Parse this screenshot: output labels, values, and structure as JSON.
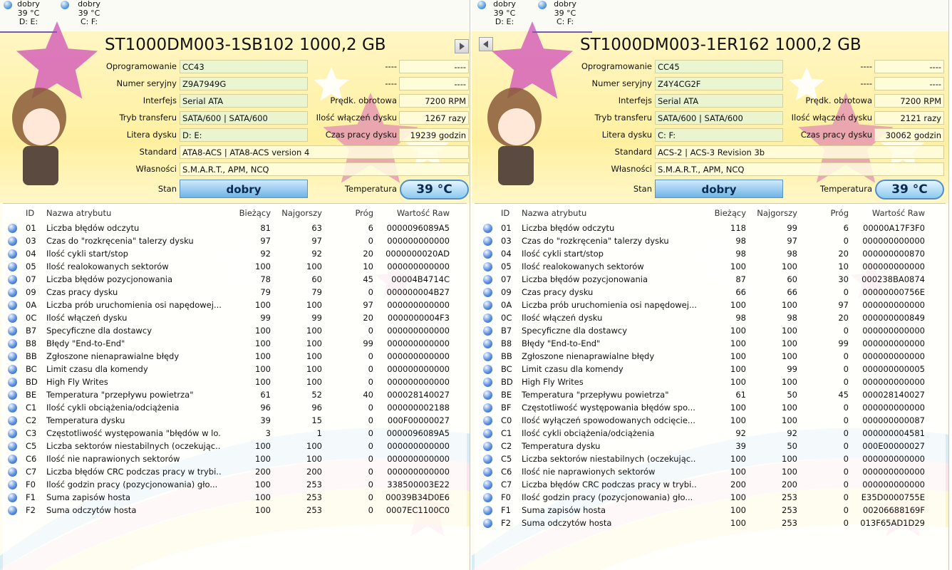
{
  "panels": [
    {
      "tabs": [
        {
          "status": "dobry",
          "temperature": "39 °C",
          "drives": "D: E:"
        },
        {
          "status": "dobry",
          "temperature": "39 °C",
          "drives": "C: F:"
        }
      ],
      "title": "ST1000DM003-1SB102 1000,2 GB",
      "fields": [
        {
          "label": "Oprogramowanie",
          "value": "CC43"
        },
        {
          "label": "Numer seryjny",
          "value": "Z9A7949G"
        },
        {
          "label": "Interfejs",
          "value": "Serial ATA"
        },
        {
          "label": "Tryb transferu",
          "value": "SATA/600 | SATA/600"
        },
        {
          "label": "Litera dysku",
          "value": "D: E:"
        },
        {
          "label": "Standard",
          "value": "ATA8-ACS | ATA8-ACS version 4"
        },
        {
          "label": "Własności",
          "value": "S.M.A.R.T., APM, NCQ"
        }
      ],
      "side_fields": [
        {
          "label": "----",
          "value": "----"
        },
        {
          "label": "----",
          "value": "----"
        },
        {
          "label": "Prędk. obrotowa",
          "value": "7200 RPM"
        },
        {
          "label": "Ilość włączeń dysku",
          "value": "1267 razy"
        },
        {
          "label": "Czas pracy dysku",
          "value": "19239 godzin"
        }
      ],
      "status": {
        "label": "Stan",
        "value": "dobry"
      },
      "temperature": {
        "label": "Temperatura",
        "value": "39 °C"
      },
      "table": {
        "headers": [
          "ID",
          "Nazwa atrybutu",
          "Bieżący",
          "Najgorszy",
          "Próg",
          "Wartość Raw"
        ],
        "rows": [
          [
            "01",
            "Liczba błędów odczytu",
            "81",
            "63",
            "6",
            "0000096089A5"
          ],
          [
            "03",
            "Czas do \"rozkręcenia\" talerzy dysku",
            "97",
            "97",
            "0",
            "000000000000"
          ],
          [
            "04",
            "Ilość cykli start/stop",
            "92",
            "92",
            "20",
            "0000000020AD"
          ],
          [
            "05",
            "Ilość realokowanych sektorów",
            "100",
            "100",
            "10",
            "000000000000"
          ],
          [
            "07",
            "Liczba błędów pozycjonowania",
            "78",
            "60",
            "45",
            "00004B4714C"
          ],
          [
            "09",
            "Czas pracy dysku",
            "79",
            "79",
            "0",
            "000000004B27"
          ],
          [
            "0A",
            "Liczba prób uruchomienia osi napędowej...",
            "100",
            "100",
            "97",
            "000000000000"
          ],
          [
            "0C",
            "Ilość włączeń dysku",
            "99",
            "99",
            "20",
            "0000000004F3"
          ],
          [
            "B7",
            "Specyficzne dla dostawcy",
            "100",
            "100",
            "0",
            "000000000000"
          ],
          [
            "B8",
            "Błędy \"End-to-End\"",
            "100",
            "100",
            "99",
            "000000000000"
          ],
          [
            "BB",
            "Zgłoszone nienaprawialne błędy",
            "100",
            "100",
            "0",
            "000000000000"
          ],
          [
            "BC",
            "Limit czasu dla komendy",
            "100",
            "100",
            "0",
            "000000000000"
          ],
          [
            "BD",
            "High Fly Writes",
            "100",
            "100",
            "0",
            "000000000000"
          ],
          [
            "BE",
            "Temperatura \"przepływu powietrza\"",
            "61",
            "52",
            "40",
            "000028140027"
          ],
          [
            "C1",
            "Ilość cykli obciążenia/odciążenia",
            "96",
            "96",
            "0",
            "000000002188"
          ],
          [
            "C2",
            "Temperatura dysku",
            "39",
            "15",
            "0",
            "000F00000027"
          ],
          [
            "C3",
            "Częstotliwość występowania \"błędów w lo...",
            "3",
            "1",
            "0",
            "0000096089A5"
          ],
          [
            "C5",
            "Liczba sektorów niestabilnych (oczekując...",
            "100",
            "100",
            "0",
            "000000000000"
          ],
          [
            "C6",
            "Ilość nie naprawionych sektorów",
            "100",
            "100",
            "0",
            "000000000000"
          ],
          [
            "C7",
            "Liczba błędów CRC podczas pracy w trybi...",
            "200",
            "200",
            "0",
            "000000000000"
          ],
          [
            "F0",
            "Ilość godzin pracy (pozycjonowania) gło...",
            "100",
            "253",
            "0",
            "338500003E22"
          ],
          [
            "F1",
            "Suma zapisów hosta",
            "100",
            "253",
            "0",
            "00039B34D0E6"
          ],
          [
            "F2",
            "Suma odczytów hosta",
            "100",
            "253",
            "0",
            "0007EC1100C0"
          ]
        ]
      }
    },
    {
      "tabs": [
        {
          "status": "dobry",
          "temperature": "39 °C",
          "drives": "D: E:"
        },
        {
          "status": "dobry",
          "temperature": "39 °C",
          "drives": "C: F:"
        }
      ],
      "title": "ST1000DM003-1ER162 1000,2 GB",
      "fields": [
        {
          "label": "Oprogramowanie",
          "value": "CC45"
        },
        {
          "label": "Numer seryjny",
          "value": "Z4Y4CG2F"
        },
        {
          "label": "Interfejs",
          "value": "Serial ATA"
        },
        {
          "label": "Tryb transferu",
          "value": "SATA/600 | SATA/600"
        },
        {
          "label": "Litera dysku",
          "value": "C: F:"
        },
        {
          "label": "Standard",
          "value": "ACS-2 | ACS-3 Revision 3b"
        },
        {
          "label": "Własności",
          "value": "S.M.A.R.T., APM, NCQ"
        }
      ],
      "side_fields": [
        {
          "label": "----",
          "value": "----"
        },
        {
          "label": "----",
          "value": "----"
        },
        {
          "label": "Prędk. obrotowa",
          "value": "7200 RPM"
        },
        {
          "label": "Ilość włączeń dysku",
          "value": "2121 razy"
        },
        {
          "label": "Czas pracy dysku",
          "value": "30062 godzin"
        }
      ],
      "status": {
        "label": "Stan",
        "value": "dobry"
      },
      "temperature": {
        "label": "Temperatura",
        "value": "39 °C"
      },
      "table": {
        "headers": [
          "ID",
          "Nazwa atrybutu",
          "Bieżący",
          "Najgorszy",
          "Próg",
          "Wartość Raw"
        ],
        "rows": [
          [
            "01",
            "Liczba błędów odczytu",
            "118",
            "99",
            "6",
            "00000A17F3F0"
          ],
          [
            "03",
            "Czas do \"rozkręcenia\" talerzy dysku",
            "98",
            "97",
            "0",
            "000000000000"
          ],
          [
            "04",
            "Ilość cykli start/stop",
            "98",
            "98",
            "20",
            "000000000870"
          ],
          [
            "05",
            "Ilość realokowanych sektorów",
            "100",
            "100",
            "10",
            "000000000000"
          ],
          [
            "07",
            "Liczba błędów pozycjonowania",
            "87",
            "60",
            "30",
            "000238BA0874"
          ],
          [
            "09",
            "Czas pracy dysku",
            "66",
            "66",
            "0",
            "00000000756E"
          ],
          [
            "0A",
            "Liczba prób uruchomienia osi napędowej...",
            "100",
            "100",
            "97",
            "000000000000"
          ],
          [
            "0C",
            "Ilość włączeń dysku",
            "98",
            "98",
            "20",
            "000000000849"
          ],
          [
            "B7",
            "Specyficzne dla dostawcy",
            "100",
            "100",
            "0",
            "000000000000"
          ],
          [
            "B8",
            "Błędy \"End-to-End\"",
            "100",
            "100",
            "99",
            "000000000000"
          ],
          [
            "BB",
            "Zgłoszone nienaprawialne błędy",
            "100",
            "100",
            "0",
            "000000000000"
          ],
          [
            "BC",
            "Limit czasu dla komendy",
            "100",
            "99",
            "0",
            "000000000005"
          ],
          [
            "BD",
            "High Fly Writes",
            "100",
            "100",
            "0",
            "000000000000"
          ],
          [
            "BE",
            "Temperatura \"przepływu powietrza\"",
            "61",
            "50",
            "45",
            "000028140027"
          ],
          [
            "BF",
            "Częstotliwość występowania błędów spo...",
            "100",
            "100",
            "0",
            "000000000000"
          ],
          [
            "C0",
            "Ilość wyłączeń spowodowanych odcięcie...",
            "100",
            "100",
            "0",
            "000000000087"
          ],
          [
            "C1",
            "Ilość cykli obciążenia/odciążenia",
            "92",
            "92",
            "0",
            "000000004581"
          ],
          [
            "C2",
            "Temperatura dysku",
            "39",
            "50",
            "0",
            "000E00000027"
          ],
          [
            "C5",
            "Liczba sektorów niestabilnych (oczekując...",
            "100",
            "100",
            "0",
            "000000000000"
          ],
          [
            "C6",
            "Ilość nie naprawionych sektorów",
            "100",
            "100",
            "0",
            "000000000000"
          ],
          [
            "C7",
            "Liczba błędów CRC podczas pracy w trybi...",
            "200",
            "200",
            "0",
            "000000000000"
          ],
          [
            "F0",
            "Ilość godzin pracy (pozycjonowania) gło...",
            "100",
            "253",
            "0",
            "E35D0000755E"
          ],
          [
            "F1",
            "Suma zapisów hosta",
            "100",
            "253",
            "0",
            "00206688169F"
          ],
          [
            "F2",
            "Suma odczytów hosta",
            "100",
            "253",
            "0",
            "013F65AD1D29"
          ]
        ]
      }
    }
  ]
}
